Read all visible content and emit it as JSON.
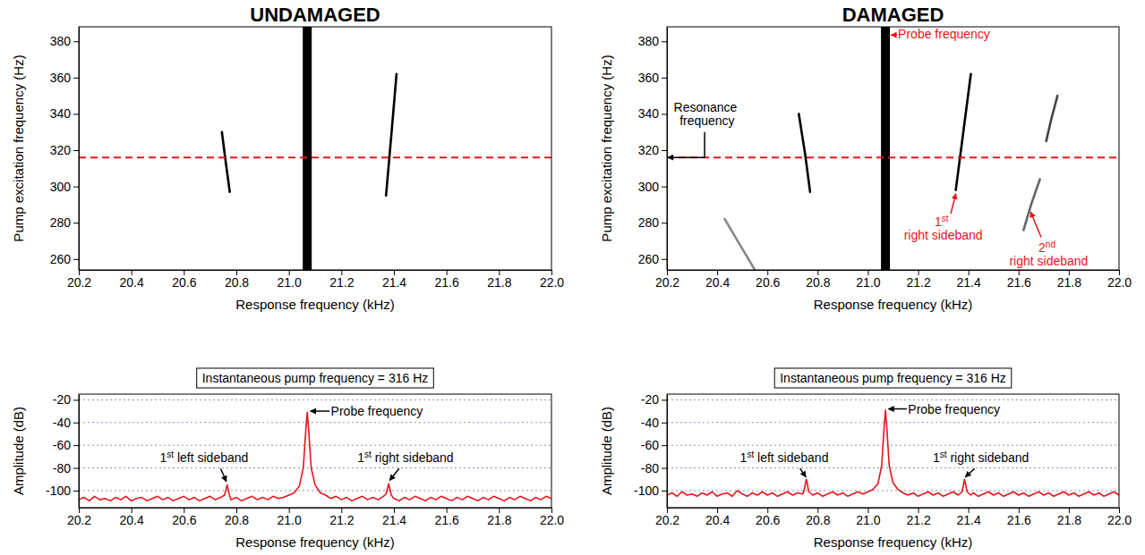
{
  "chart_data": [
    {
      "type": "spectrogram",
      "title": "UNDAMAGED",
      "x_label": "Response frequency (kHz)",
      "y_label": "Pump excitation frequency (Hz)",
      "xlim": [
        20.2,
        22
      ],
      "xticks": [
        20.2,
        20.4,
        20.6,
        20.8,
        {
          "value": 21,
          "label": "21.0"
        },
        21.2,
        21.4,
        21.6,
        21.8,
        {
          "value": 22,
          "label": "22.0"
        }
      ],
      "ylim": [
        254,
        388
      ],
      "yticks": [
        260,
        280,
        300,
        320,
        340,
        360,
        380
      ],
      "probe_frequency": 21.07,
      "reference_line": {
        "value": 316,
        "color": "#e8141c",
        "line_style": "dashed"
      },
      "series": [
        {
          "color": "#000000",
          "x": [
            20.745,
            20.76,
            20.775
          ],
          "values": [
            330,
            313,
            297
          ]
        },
        {
          "color": "#000000",
          "x": [
            21.37,
            21.39,
            21.41
          ],
          "values": [
            295,
            328,
            362
          ]
        }
      ]
    },
    {
      "type": "spectrogram",
      "title": "DAMAGED",
      "x_label": "Response frequency (kHz)",
      "y_label": "Pump excitation frequency (Hz)",
      "xlim": [
        20.2,
        22
      ],
      "xticks": [
        20.2,
        20.4,
        20.6,
        20.8,
        {
          "value": 21,
          "label": "21.0"
        },
        21.2,
        21.4,
        21.6,
        21.8,
        {
          "value": 22,
          "label": "22.0"
        }
      ],
      "ylim": [
        254,
        388
      ],
      "yticks": [
        260,
        280,
        300,
        320,
        340,
        360,
        380
      ],
      "probe_frequency": 21.07,
      "reference_line": {
        "value": 316,
        "color": "#e8141c",
        "line_style": "dashed"
      },
      "series": [
        {
          "color": "#000000",
          "x": [
            20.725,
            20.75,
            20.77
          ],
          "values": [
            340,
            318,
            297
          ]
        },
        {
          "color": "#888888",
          "x": [
            20.43,
            20.49,
            20.55
          ],
          "values": [
            282,
            268,
            254
          ]
        },
        {
          "color": "#000000",
          "x": [
            21.35,
            21.38,
            21.41
          ],
          "values": [
            298,
            330,
            362
          ]
        },
        {
          "color": "#666666",
          "x": [
            21.62,
            21.65,
            21.685
          ],
          "values": [
            276,
            290,
            304
          ]
        },
        {
          "color": "#444444",
          "x": [
            21.71,
            21.73,
            21.755
          ],
          "values": [
            325,
            337,
            350
          ]
        }
      ],
      "annotations": [
        {
          "text": "Probe frequency",
          "color": "#e8141c"
        },
        {
          "text": "Resonance frequency",
          "color": "#000000"
        },
        {
          "text": "1st right sideband",
          "color": "#e8141c"
        },
        {
          "text": "2nd right sideband",
          "color": "#e8141c"
        }
      ]
    },
    {
      "type": "line",
      "title": "Instantaneous pump frequency = 316 Hz",
      "x_label": "Response frequency (kHz)",
      "y_label": "Amplitude (dB)",
      "xlim": [
        20.2,
        22
      ],
      "xticks": [
        20.2,
        20.4,
        20.6,
        20.8,
        {
          "value": 21,
          "label": "21.0"
        },
        21.2,
        21.4,
        21.6,
        21.8,
        {
          "value": 22,
          "label": "22.0"
        }
      ],
      "ylim": [
        -115,
        -15
      ],
      "yticks": [
        -20,
        -40,
        -60,
        -80,
        -100
      ],
      "grid": true,
      "series": [
        {
          "color": "#e8141c",
          "x": [
            20.2,
            20.22,
            20.24,
            20.26,
            20.28,
            20.3,
            20.32,
            20.34,
            20.36,
            20.38,
            20.4,
            20.42,
            20.44,
            20.46,
            20.48,
            20.5,
            20.52,
            20.54,
            20.56,
            20.58,
            20.6,
            20.62,
            20.64,
            20.66,
            20.68,
            20.7,
            20.72,
            20.74,
            20.755,
            20.765,
            20.775,
            20.78,
            20.8,
            20.82,
            20.84,
            20.86,
            20.88,
            20.9,
            20.92,
            20.94,
            20.96,
            20.98,
            21,
            21.02,
            21.04,
            21.055,
            21.065,
            21.07,
            21.075,
            21.085,
            21.1,
            21.12,
            21.14,
            21.16,
            21.18,
            21.2,
            21.22,
            21.24,
            21.26,
            21.28,
            21.3,
            21.32,
            21.34,
            21.36,
            21.37,
            21.38,
            21.39,
            21.4,
            21.42,
            21.44,
            21.46,
            21.48,
            21.5,
            21.52,
            21.54,
            21.56,
            21.58,
            21.6,
            21.62,
            21.64,
            21.66,
            21.68,
            21.7,
            21.72,
            21.74,
            21.76,
            21.78,
            21.8,
            21.82,
            21.84,
            21.86,
            21.88,
            21.9,
            21.92,
            21.94,
            21.96,
            21.98,
            22
          ],
          "values": [
            -108,
            -106,
            -109,
            -105,
            -108,
            -107,
            -109,
            -106,
            -108,
            -105,
            -109,
            -107,
            -106,
            -109,
            -107,
            -105,
            -108,
            -106,
            -109,
            -107,
            -105,
            -108,
            -106,
            -109,
            -107,
            -105,
            -108,
            -106,
            -104,
            -95,
            -105,
            -108,
            -106,
            -109,
            -107,
            -105,
            -108,
            -106,
            -108,
            -105,
            -107,
            -106,
            -104,
            -102,
            -96,
            -80,
            -45,
            -31,
            -45,
            -80,
            -95,
            -102,
            -104,
            -107,
            -105,
            -108,
            -106,
            -109,
            -107,
            -105,
            -108,
            -106,
            -108,
            -105,
            -103,
            -94,
            -104,
            -107,
            -109,
            -106,
            -108,
            -105,
            -107,
            -109,
            -106,
            -108,
            -105,
            -107,
            -109,
            -106,
            -108,
            -105,
            -107,
            -109,
            -106,
            -108,
            -105,
            -107,
            -109,
            -106,
            -108,
            -105,
            -107,
            -109,
            -106,
            -108,
            -105,
            -107
          ]
        }
      ],
      "annotations": [
        {
          "text": "1st left sideband",
          "color": "#000000"
        },
        {
          "text": "Probe frequency",
          "color": "#000000"
        },
        {
          "text": "1st right sideband",
          "color": "#000000"
        }
      ]
    },
    {
      "type": "line",
      "title": "Instantaneous pump frequency = 316 Hz",
      "x_label": "Response frequency (kHz)",
      "y_label": "Amplitude (dB)",
      "xlim": [
        20.2,
        22
      ],
      "xticks": [
        20.2,
        20.4,
        20.6,
        20.8,
        {
          "value": 21,
          "label": "21.0"
        },
        21.2,
        21.4,
        21.6,
        21.8,
        {
          "value": 22,
          "label": "22.0"
        }
      ],
      "ylim": [
        -115,
        -15
      ],
      "yticks": [
        -20,
        -40,
        -60,
        -80,
        -100
      ],
      "grid": true,
      "series": [
        {
          "color": "#e8141c",
          "x": [
            20.2,
            20.22,
            20.24,
            20.26,
            20.28,
            20.3,
            20.32,
            20.34,
            20.36,
            20.38,
            20.4,
            20.42,
            20.44,
            20.46,
            20.48,
            20.5,
            20.52,
            20.54,
            20.56,
            20.58,
            20.6,
            20.62,
            20.64,
            20.66,
            20.68,
            20.7,
            20.72,
            20.74,
            20.745,
            20.755,
            20.765,
            20.78,
            20.8,
            20.82,
            20.84,
            20.86,
            20.88,
            20.9,
            20.92,
            20.94,
            20.96,
            20.98,
            21,
            21.02,
            21.04,
            21.055,
            21.065,
            21.07,
            21.075,
            21.085,
            21.1,
            21.12,
            21.14,
            21.16,
            21.18,
            21.2,
            21.22,
            21.24,
            21.26,
            21.28,
            21.3,
            21.32,
            21.34,
            21.36,
            21.375,
            21.385,
            21.395,
            21.41,
            21.42,
            21.44,
            21.46,
            21.48,
            21.5,
            21.52,
            21.54,
            21.56,
            21.58,
            21.6,
            21.62,
            21.64,
            21.66,
            21.68,
            21.7,
            21.72,
            21.74,
            21.76,
            21.78,
            21.8,
            21.82,
            21.84,
            21.86,
            21.88,
            21.9,
            21.92,
            21.94,
            21.96,
            21.98,
            22
          ],
          "values": [
            -104,
            -102,
            -105,
            -101,
            -104,
            -103,
            -105,
            -102,
            -104,
            -101,
            -105,
            -103,
            -102,
            -105,
            -100,
            -103,
            -105,
            -102,
            -104,
            -101,
            -104,
            -102,
            -105,
            -103,
            -101,
            -104,
            -102,
            -103,
            -101,
            -90,
            -101,
            -104,
            -102,
            -105,
            -103,
            -101,
            -104,
            -102,
            -105,
            -103,
            -101,
            -103,
            -101,
            -99,
            -94,
            -78,
            -43,
            -29,
            -43,
            -78,
            -93,
            -99,
            -102,
            -104,
            -102,
            -105,
            -103,
            -101,
            -104,
            -102,
            -105,
            -103,
            -101,
            -104,
            -101,
            -90,
            -101,
            -104,
            -102,
            -105,
            -103,
            -101,
            -104,
            -102,
            -105,
            -103,
            -101,
            -104,
            -102,
            -105,
            -103,
            -101,
            -104,
            -102,
            -105,
            -103,
            -101,
            -104,
            -102,
            -105,
            -103,
            -101,
            -104,
            -102,
            -105,
            -103,
            -101,
            -104
          ]
        }
      ],
      "annotations": [
        {
          "text": "1st left sideband",
          "color": "#000000"
        },
        {
          "text": "Probe frequency",
          "color": "#000000"
        },
        {
          "text": "1st right sideband",
          "color": "#000000"
        }
      ]
    }
  ]
}
